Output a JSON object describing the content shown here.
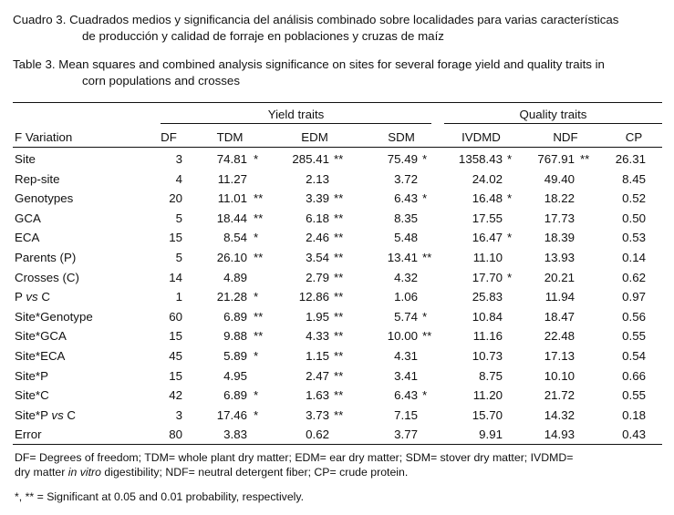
{
  "caption_es": {
    "line1": "Cuadro 3. Cuadrados medios y significancia del análisis combinado sobre localidades para varias características",
    "line2": "de producción y calidad de forraje en poblaciones y cruzas de maíz"
  },
  "caption_en": {
    "line1": "Table 3. Mean squares and combined analysis significance on sites for several forage yield and quality traits in",
    "line2": "corn populations and crosses"
  },
  "table": {
    "group_yield": "Yield traits",
    "group_quality": "Quality traits",
    "headers": [
      "F Variation",
      "DF",
      "TDM",
      "EDM",
      "SDM",
      "IVDMD",
      "NDF",
      "CP"
    ],
    "rows": [
      {
        "source": "Site",
        "df": "3",
        "tdm": "74.81",
        "tdm_sig": "*",
        "edm": "285.41",
        "edm_sig": "**",
        "sdm": "75.49",
        "sdm_sig": "*",
        "ivdmd": "1358.43",
        "ivdmd_sig": "*",
        "ndf": "767.91",
        "ndf_sig": "**",
        "cp": "26.31"
      },
      {
        "source": "Rep-site",
        "df": "4",
        "tdm": "11.27",
        "tdm_sig": "",
        "edm": "2.13",
        "edm_sig": "",
        "sdm": "3.72",
        "sdm_sig": "",
        "ivdmd": "24.02",
        "ivdmd_sig": "",
        "ndf": "49.40",
        "ndf_sig": "",
        "cp": "8.45"
      },
      {
        "source": "Genotypes",
        "df": "20",
        "tdm": "11.01",
        "tdm_sig": "**",
        "edm": "3.39",
        "edm_sig": "**",
        "sdm": "6.43",
        "sdm_sig": "*",
        "ivdmd": "16.48",
        "ivdmd_sig": "*",
        "ndf": "18.22",
        "ndf_sig": "",
        "cp": "0.52"
      },
      {
        "source": "GCA",
        "df": "5",
        "tdm": "18.44",
        "tdm_sig": "**",
        "edm": "6.18",
        "edm_sig": "**",
        "sdm": "8.35",
        "sdm_sig": "",
        "ivdmd": "17.55",
        "ivdmd_sig": "",
        "ndf": "17.73",
        "ndf_sig": "",
        "cp": "0.50"
      },
      {
        "source": "ECA",
        "df": "15",
        "tdm": "8.54",
        "tdm_sig": "*",
        "edm": "2.46",
        "edm_sig": "**",
        "sdm": "5.48",
        "sdm_sig": "",
        "ivdmd": "16.47",
        "ivdmd_sig": "*",
        "ndf": "18.39",
        "ndf_sig": "",
        "cp": "0.53"
      },
      {
        "source": "Parents  (P)",
        "df": "5",
        "tdm": "26.10",
        "tdm_sig": "**",
        "edm": "3.54",
        "edm_sig": "**",
        "sdm": "13.41",
        "sdm_sig": "**",
        "ivdmd": "11.10",
        "ivdmd_sig": "",
        "ndf": "13.93",
        "ndf_sig": "",
        "cp": "0.14"
      },
      {
        "source": "Crosses  (C)",
        "df": "14",
        "tdm": "4.89",
        "tdm_sig": "",
        "edm": "2.79",
        "edm_sig": "**",
        "sdm": "4.32",
        "sdm_sig": "",
        "ivdmd": "17.70",
        "ivdmd_sig": "*",
        "ndf": "20.21",
        "ndf_sig": "",
        "cp": "0.62"
      },
      {
        "source_a": "P ",
        "source_vs": "vs",
        "source_b": " C",
        "df": "1",
        "tdm": "21.28",
        "tdm_sig": "*",
        "edm": "12.86",
        "edm_sig": "**",
        "sdm": "1.06",
        "sdm_sig": "",
        "ivdmd": "25.83",
        "ivdmd_sig": "",
        "ndf": "11.94",
        "ndf_sig": "",
        "cp": "0.97"
      },
      {
        "source": "Site*Genotype",
        "df": "60",
        "tdm": "6.89",
        "tdm_sig": "**",
        "edm": "1.95",
        "edm_sig": "**",
        "sdm": "5.74",
        "sdm_sig": "*",
        "ivdmd": "10.84",
        "ivdmd_sig": "",
        "ndf": "18.47",
        "ndf_sig": "",
        "cp": "0.56"
      },
      {
        "source": "Site*GCA",
        "df": "15",
        "tdm": "9.88",
        "tdm_sig": "**",
        "edm": "4.33",
        "edm_sig": "**",
        "sdm": "10.00",
        "sdm_sig": "**",
        "ivdmd": "11.16",
        "ivdmd_sig": "",
        "ndf": "22.48",
        "ndf_sig": "",
        "cp": "0.55"
      },
      {
        "source": "Site*ECA",
        "df": "45",
        "tdm": "5.89",
        "tdm_sig": "*",
        "edm": "1.15",
        "edm_sig": "**",
        "sdm": "4.31",
        "sdm_sig": "",
        "ivdmd": "10.73",
        "ivdmd_sig": "",
        "ndf": "17.13",
        "ndf_sig": "",
        "cp": "0.54"
      },
      {
        "source": "Site*P",
        "df": "15",
        "tdm": "4.95",
        "tdm_sig": "",
        "edm": "2.47",
        "edm_sig": "**",
        "sdm": "3.41",
        "sdm_sig": "",
        "ivdmd": "8.75",
        "ivdmd_sig": "",
        "ndf": "10.10",
        "ndf_sig": "",
        "cp": "0.66"
      },
      {
        "source": "Site*C",
        "df": "42",
        "tdm": "6.89",
        "tdm_sig": "*",
        "edm": "1.63",
        "edm_sig": "**",
        "sdm": "6.43",
        "sdm_sig": "*",
        "ivdmd": "11.20",
        "ivdmd_sig": "",
        "ndf": "21.72",
        "ndf_sig": "",
        "cp": "0.55"
      },
      {
        "source_a": "Site*P ",
        "source_vs": "vs",
        "source_b": " C",
        "df": "3",
        "tdm": "17.46",
        "tdm_sig": "*",
        "edm": "3.73",
        "edm_sig": "**",
        "sdm": "7.15",
        "sdm_sig": "",
        "ivdmd": "15.70",
        "ivdmd_sig": "",
        "ndf": "14.32",
        "ndf_sig": "",
        "cp": "0.18"
      },
      {
        "source": "Error",
        "df": "80",
        "tdm": "3.83",
        "tdm_sig": "",
        "edm": "0.62",
        "edm_sig": "",
        "sdm": "3.77",
        "sdm_sig": "",
        "ivdmd": "9.91",
        "ivdmd_sig": "",
        "ndf": "14.93",
        "ndf_sig": "",
        "cp": "0.43"
      }
    ]
  },
  "footnote": {
    "line1": "DF= Degrees of freedom; TDM= whole plant dry matter; EDM= ear dry matter; SDM= stover dry matter; IVDMD=",
    "line2_a": "dry matter ",
    "line2_italic": "in vitro",
    "line2_b": " digestibility; NDF= neutral detergent fiber; CP= crude protein.",
    "sig_note": "*, ** = Significant at 0.05 and 0.01 probability, respectively."
  }
}
